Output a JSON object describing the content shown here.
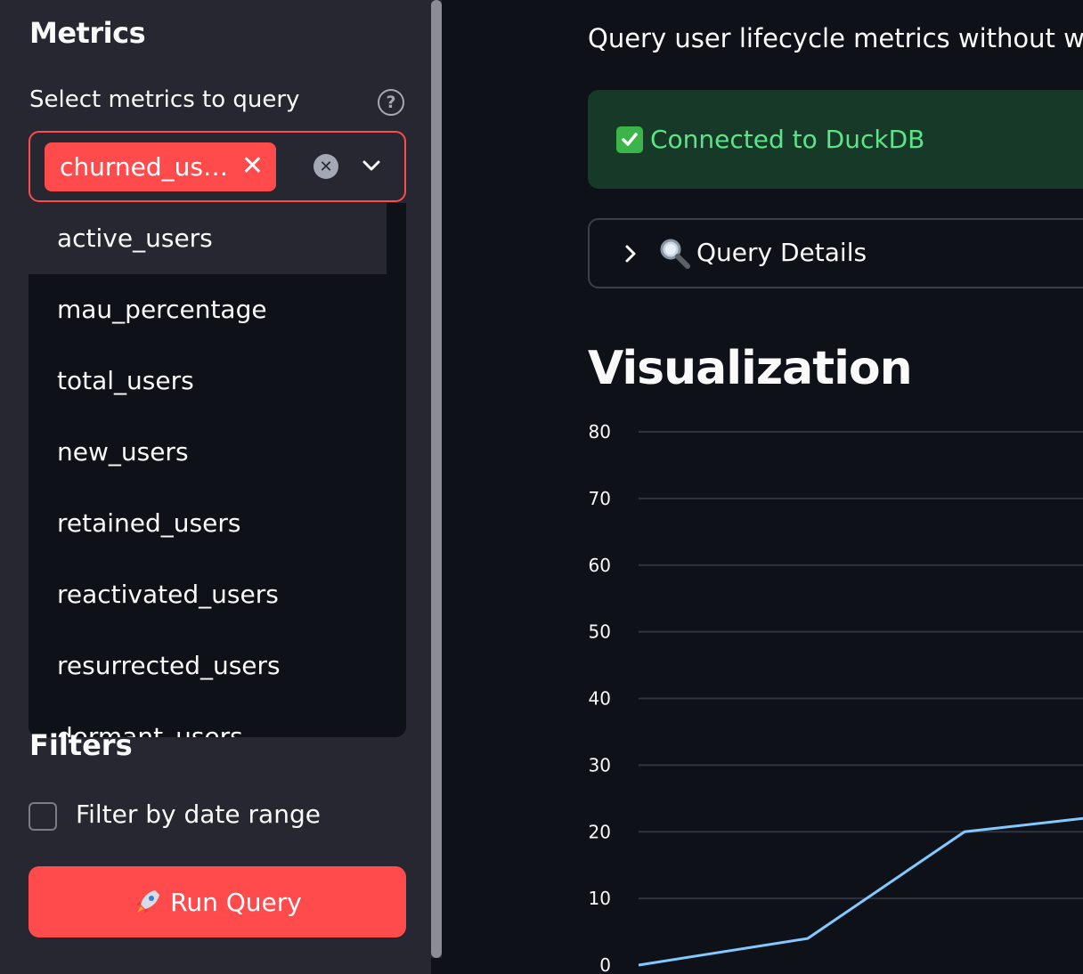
{
  "sidebar": {
    "title": "Metrics",
    "select_label": "Select metrics to query",
    "selected_chip": "churned_us…",
    "options": [
      "active_users",
      "mau_percentage",
      "total_users",
      "new_users",
      "retained_users",
      "reactivated_users",
      "resurrected_users",
      "dormant_users"
    ],
    "active_option_index": 0,
    "filters_title": "Filters",
    "filter_checkbox_label": "Filter by date range",
    "filter_checked": false,
    "run_button_label": "Run Query"
  },
  "main": {
    "subtitle": "Query user lifecycle metrics without writin",
    "alert_text": "Connected to DuckDB",
    "expander_label": "Query Details",
    "viz_title": "Visualization"
  },
  "colors": {
    "accent": "#ff4b4b",
    "sidebar_bg": "#262730",
    "main_bg": "#0e1117",
    "success_bg": "#173928",
    "success_text": "#5ce488",
    "line": "#83c9ff"
  },
  "chart_data": {
    "type": "line",
    "y_ticks": [
      0,
      10,
      20,
      30,
      40,
      50,
      60,
      70,
      80
    ],
    "ylim": [
      0,
      80
    ],
    "x_ticks_visible": false,
    "series": [
      {
        "values": [
          0,
          4,
          20,
          22
        ]
      }
    ],
    "grid": true,
    "legend": "none"
  }
}
